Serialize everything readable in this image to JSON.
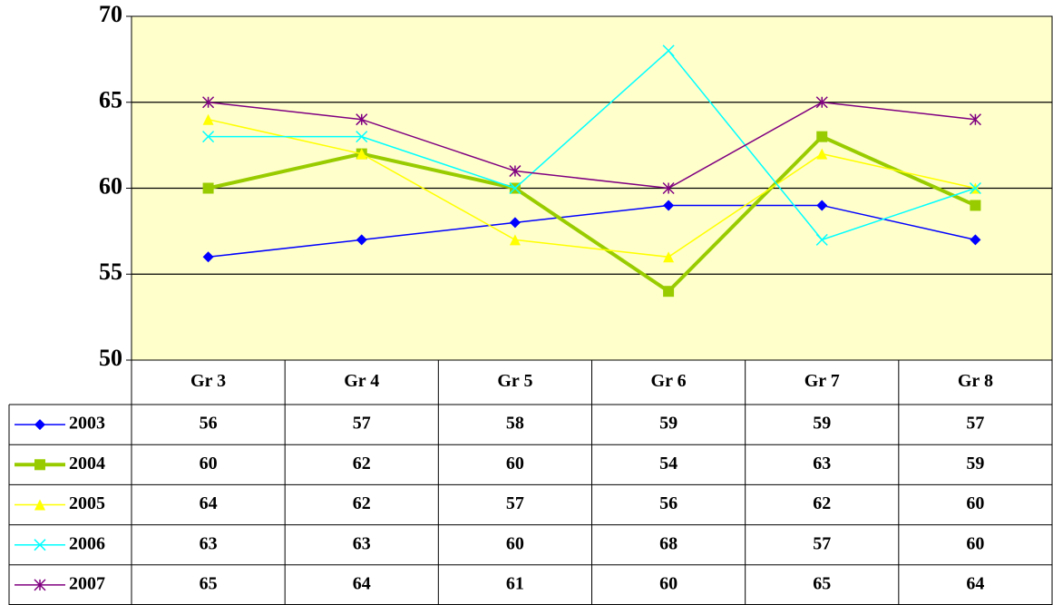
{
  "chart_data": {
    "type": "line",
    "categories": [
      "Gr 3",
      "Gr 4",
      "Gr 5",
      "Gr 6",
      "Gr 7",
      "Gr 8"
    ],
    "series": [
      {
        "name": "2003",
        "color": "#0000ff",
        "marker": "diamond",
        "values": [
          56,
          57,
          58,
          59,
          59,
          57
        ]
      },
      {
        "name": "2004",
        "color": "#99cc00",
        "marker": "square",
        "values": [
          60,
          62,
          60,
          54,
          63,
          59
        ]
      },
      {
        "name": "2005",
        "color": "#ffff00",
        "marker": "triangle",
        "values": [
          64,
          62,
          57,
          56,
          62,
          60
        ]
      },
      {
        "name": "2006",
        "color": "#00ffff",
        "marker": "x",
        "values": [
          63,
          63,
          60,
          68,
          57,
          60
        ]
      },
      {
        "name": "2007",
        "color": "#800080",
        "marker": "star",
        "values": [
          65,
          64,
          61,
          60,
          65,
          64
        ]
      }
    ],
    "ylim": [
      50,
      70
    ],
    "yticks": [
      50,
      55,
      60,
      65,
      70
    ],
    "grid": true,
    "plot_background": "#ffffcc",
    "data_table": true
  }
}
